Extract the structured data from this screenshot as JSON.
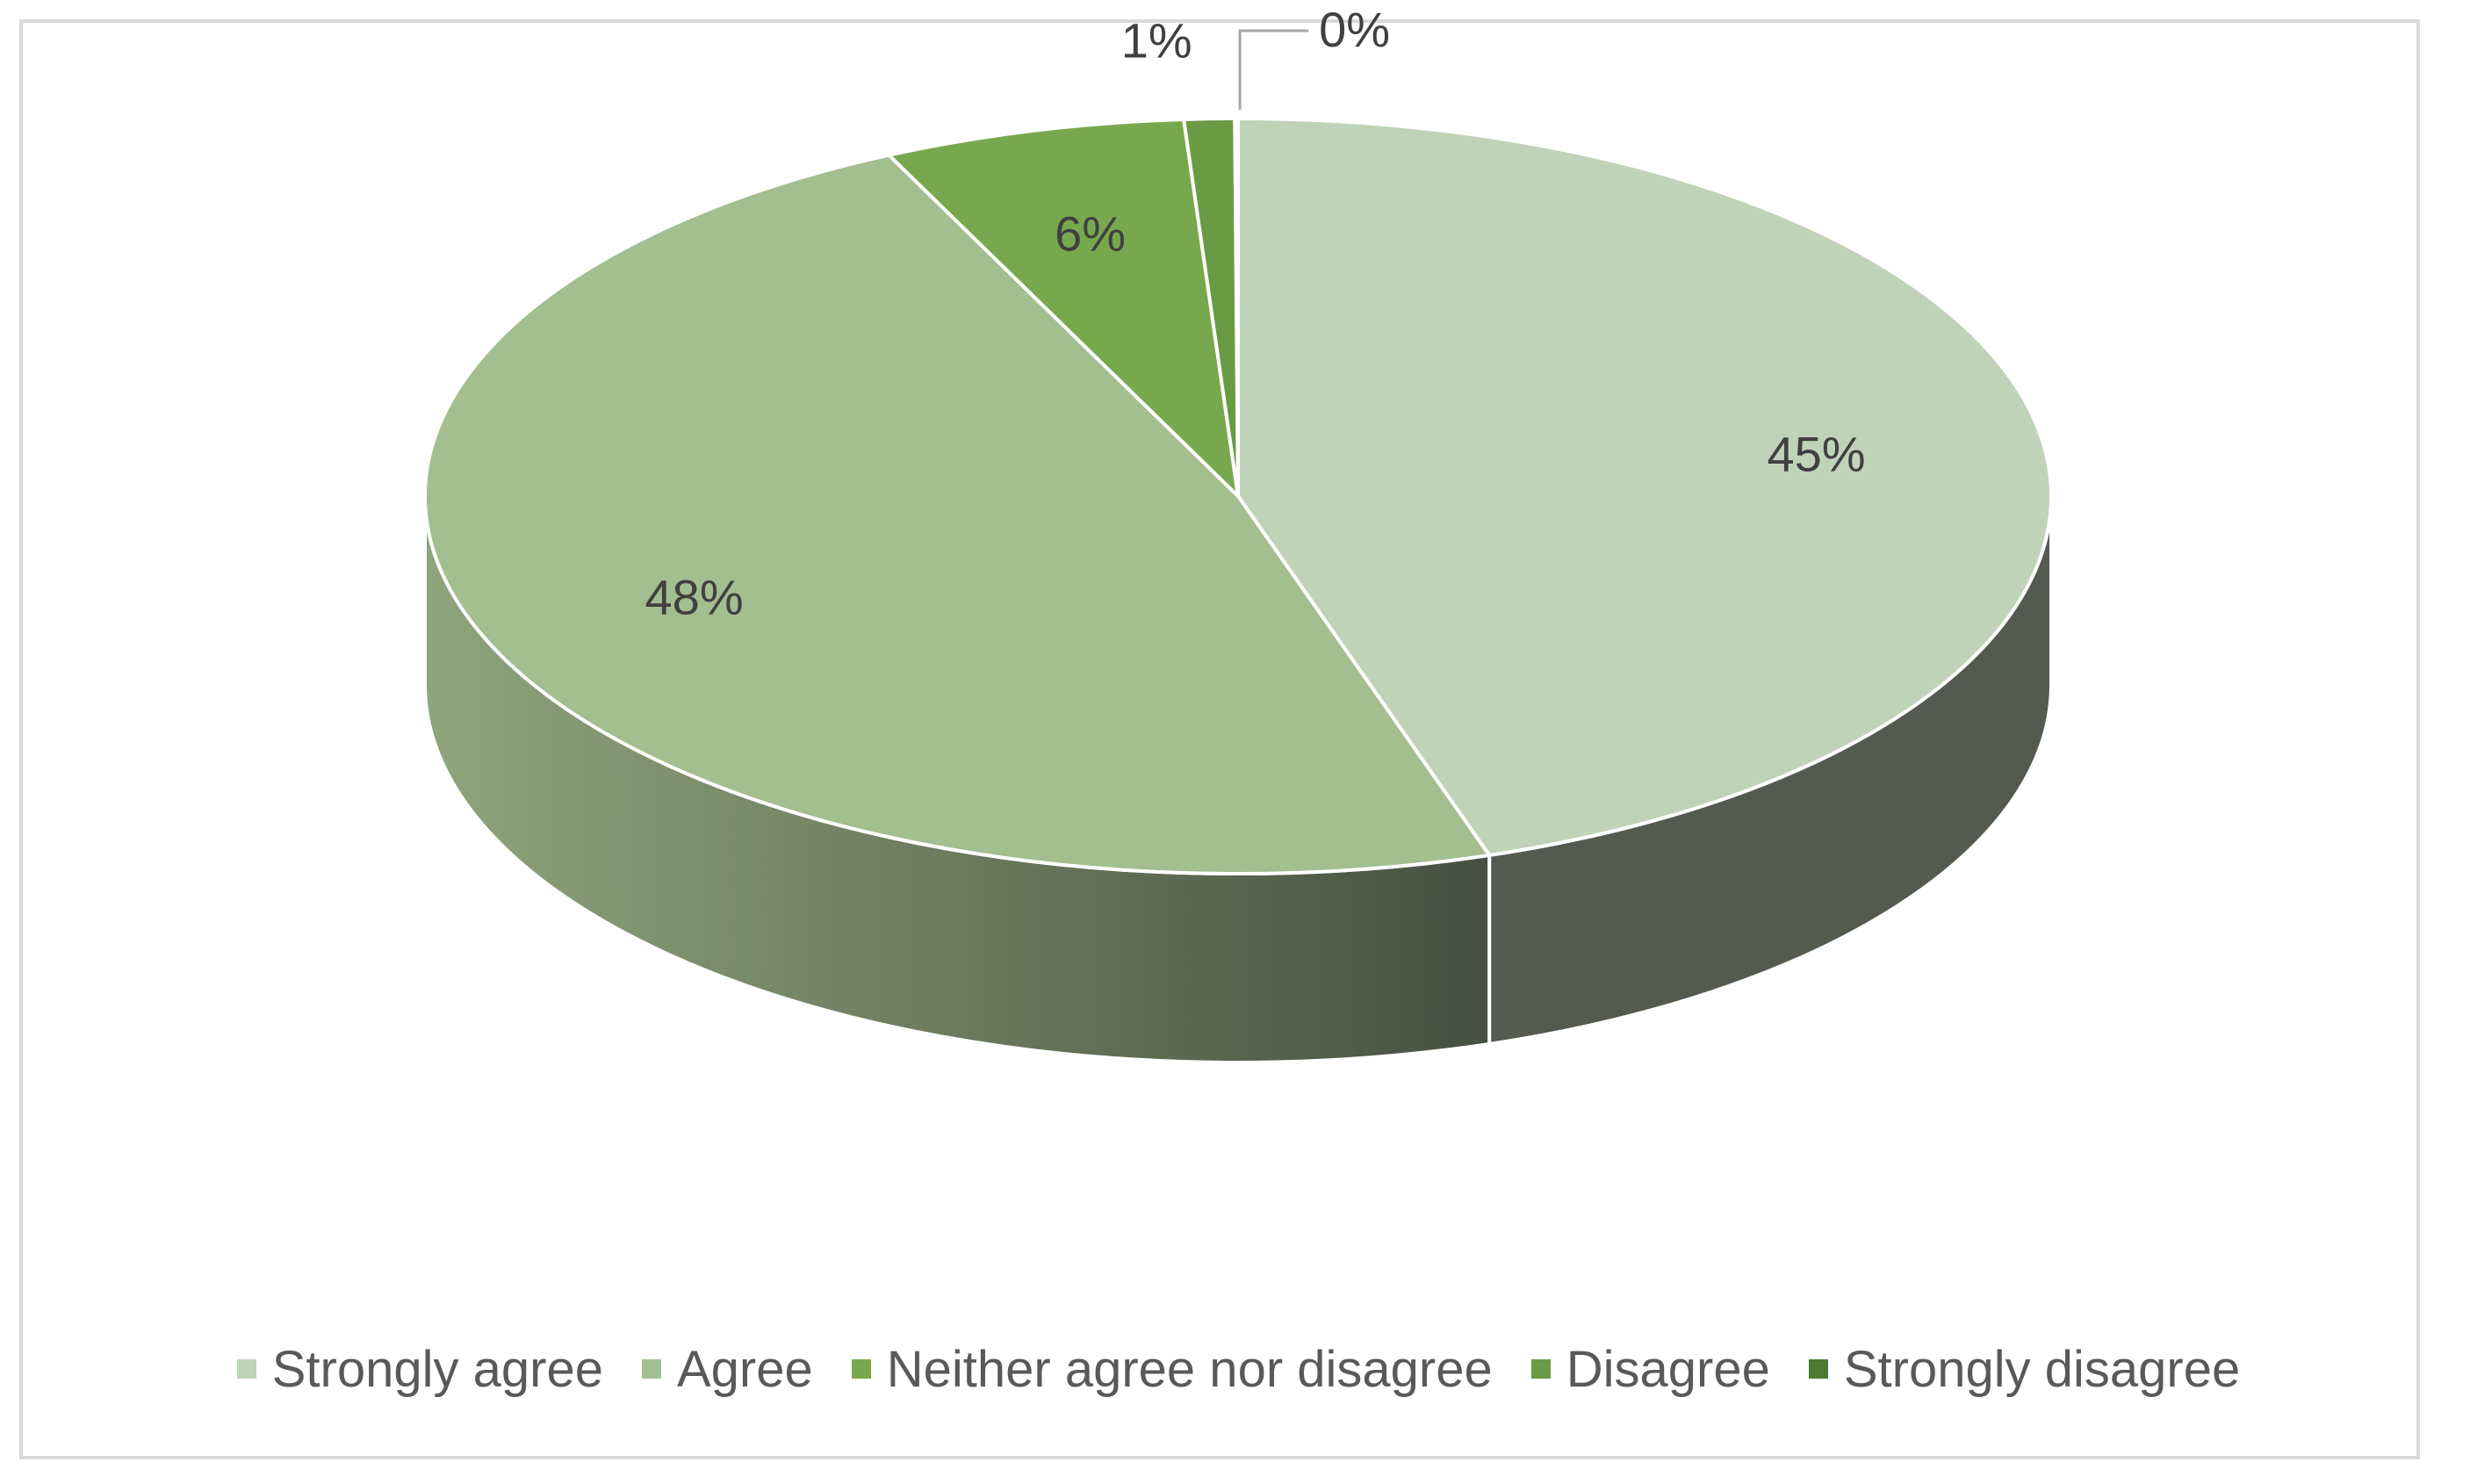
{
  "chart_data": {
    "type": "pie",
    "three_d": true,
    "slices": [
      {
        "name": "Strongly agree",
        "value": 45,
        "label": "45%",
        "color": "#bfd3b8"
      },
      {
        "name": "Agree",
        "value": 48,
        "label": "48%",
        "color": "#a3be8f"
      },
      {
        "name": "Neither agree nor disagree",
        "value": 6,
        "label": "6%",
        "color": "#78a84e"
      },
      {
        "name": "Disagree",
        "value": 1,
        "label": "1%",
        "color": "#6b9a45"
      },
      {
        "name": "Strongly disagree",
        "value": 0,
        "label": "0%",
        "color": "#4f7a32"
      }
    ],
    "legend_position": "bottom"
  }
}
